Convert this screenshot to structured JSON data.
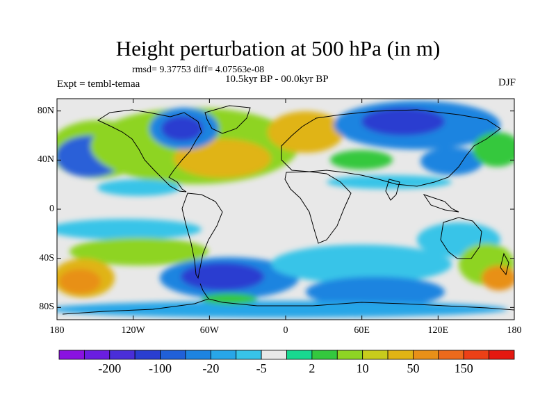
{
  "title": "Height perturbation at 500 hPa (in m)",
  "stats": "rmsd= 9.37753 diff= 4.07563e-08",
  "period": "10.5kyr BP - 00.0kyr BP",
  "experiment": "Expt = tembl-temaa",
  "season": "DJF",
  "map": {
    "lon_range": [
      -180,
      180
    ],
    "lat_range": [
      -90,
      90
    ],
    "lon_ticks": [
      {
        "value": -180,
        "label": "180"
      },
      {
        "value": -120,
        "label": "120W"
      },
      {
        "value": -60,
        "label": "60W"
      },
      {
        "value": 0,
        "label": "0"
      },
      {
        "value": 60,
        "label": "60E"
      },
      {
        "value": 120,
        "label": "120E"
      },
      {
        "value": 180,
        "label": "180"
      }
    ],
    "lat_ticks": [
      {
        "value": 80,
        "label": "80N"
      },
      {
        "value": 40,
        "label": "40N"
      },
      {
        "value": 0,
        "label": "0"
      },
      {
        "value": -40,
        "label": "40S"
      },
      {
        "value": -80,
        "label": "80S"
      }
    ],
    "ocean_color": "#e8e8e8",
    "coastline_color": "#000000"
  },
  "colorbar": {
    "colors": [
      "#8a12e0",
      "#6a1ee0",
      "#4a2ed8",
      "#2a3ed0",
      "#2060d8",
      "#1e84e0",
      "#28a6e8",
      "#38c4e8",
      "#e8e8e8",
      "#18d890",
      "#34c83e",
      "#8ed424",
      "#c8cc1c",
      "#e0b414",
      "#e89018",
      "#ec6a1c",
      "#ec4016",
      "#e41810"
    ],
    "labels": [
      {
        "text": "-200",
        "boundary": 2
      },
      {
        "text": "-100",
        "boundary": 4
      },
      {
        "text": "-20",
        "boundary": 6
      },
      {
        "text": "-5",
        "boundary": 8
      },
      {
        "text": "2",
        "boundary": 10
      },
      {
        "text": "10",
        "boundary": 12
      },
      {
        "text": "50",
        "boundary": 14
      },
      {
        "text": "150",
        "boundary": 16
      }
    ]
  }
}
